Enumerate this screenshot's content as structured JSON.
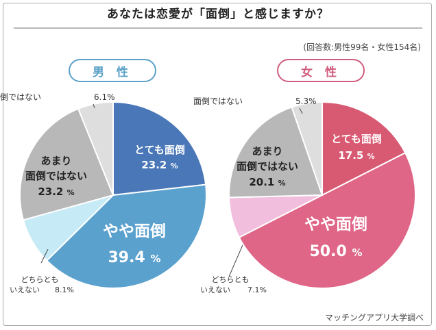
{
  "title": "あなたは恋愛が「面倒」と感じますか？",
  "respondents": "(回答数:男性99名・女性154名)",
  "source": "マッチングアプリ大学調べ",
  "chart_data": [
    {
      "type": "pie",
      "title": "男 性",
      "slices": [
        {
          "label": "とても面倒",
          "value": 23.2,
          "color": "#4a77b7"
        },
        {
          "label": "やや面倒",
          "value": 39.4,
          "color": "#5ba1ce"
        },
        {
          "label": "どちらとも\nいえない",
          "value": 8.1,
          "color": "#c7ebf6"
        },
        {
          "label": "あまり\n面倒ではない",
          "value": 23.2,
          "color": "#b8b8b8"
        },
        {
          "label": "面倒ではない",
          "value": 6.1,
          "color": "#dedede"
        }
      ]
    },
    {
      "type": "pie",
      "title": "女 性",
      "slices": [
        {
          "label": "とても面倒",
          "value": 17.5,
          "color": "#d85a72"
        },
        {
          "label": "やや面倒",
          "value": 50.0,
          "color": "#df6687"
        },
        {
          "label": "どちらとも\nいえない",
          "value": 7.1,
          "color": "#f2bedd"
        },
        {
          "label": "あまり\n面倒ではない",
          "value": 20.1,
          "color": "#b8b8b8"
        },
        {
          "label": "面倒ではない",
          "value": 5.3,
          "color": "#dedede"
        }
      ]
    }
  ]
}
